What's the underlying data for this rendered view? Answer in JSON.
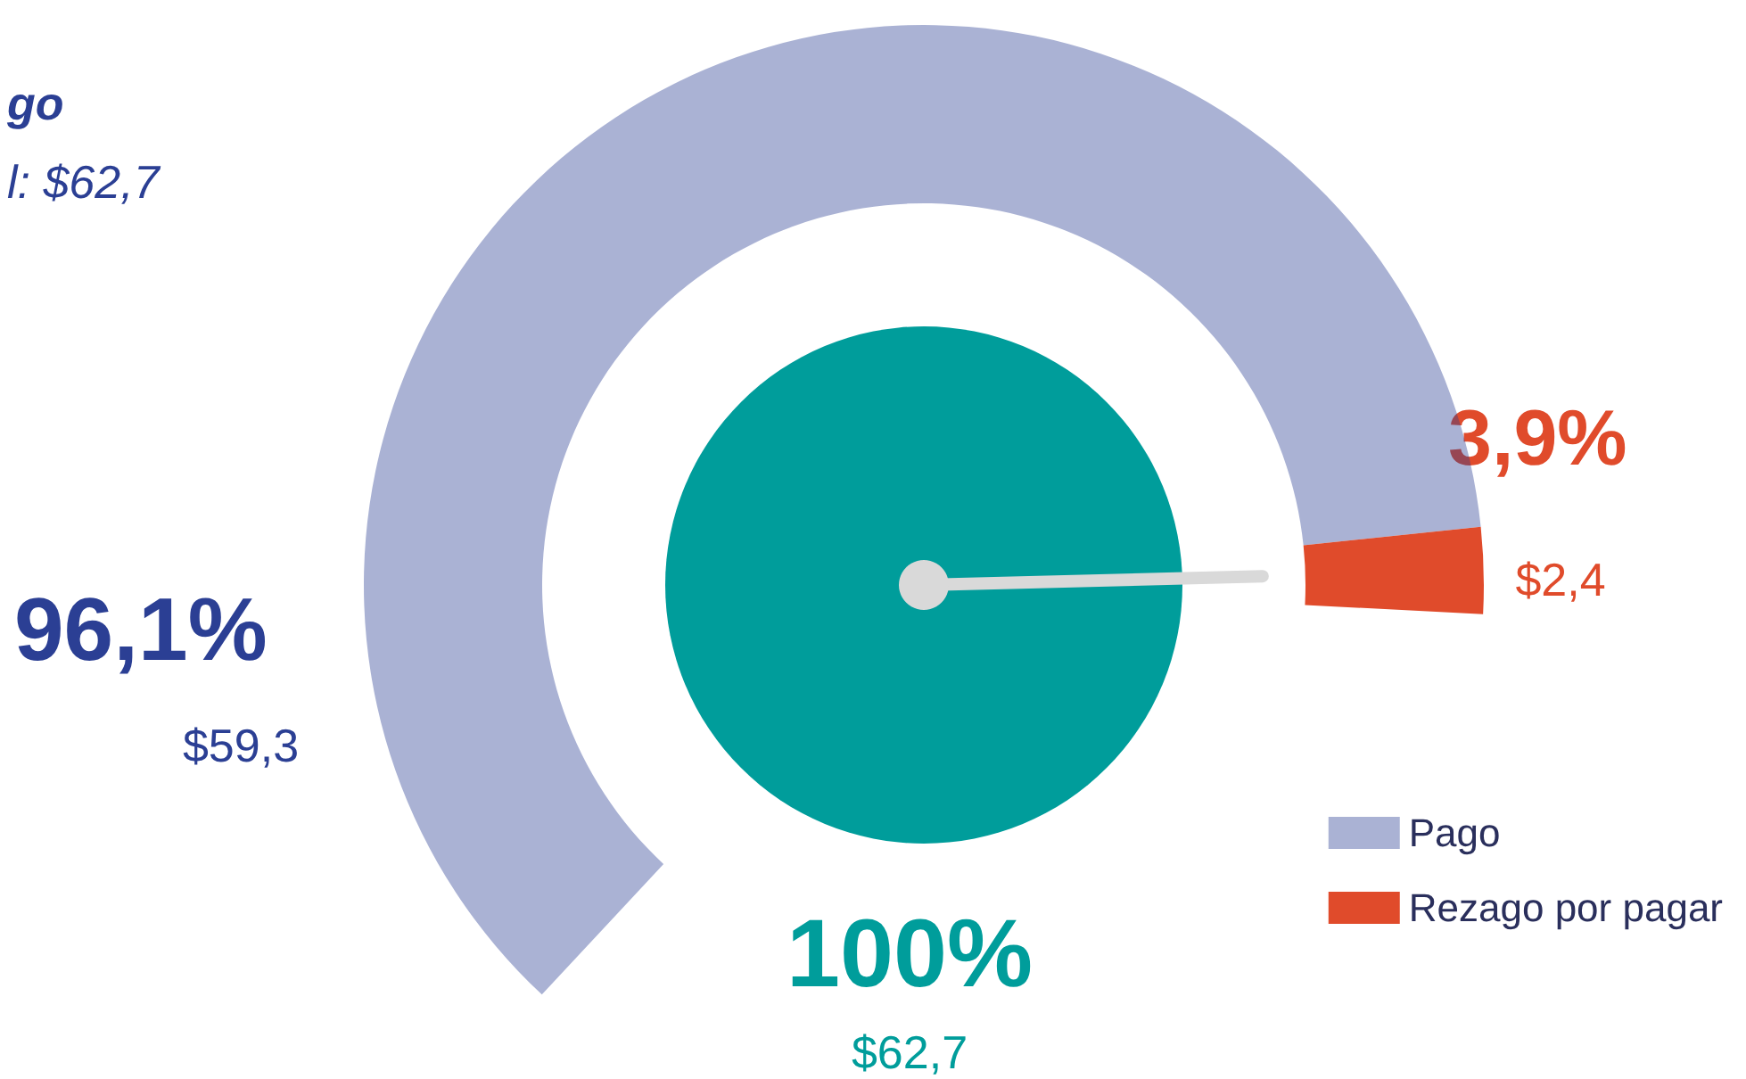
{
  "chart_data": {
    "type": "donut",
    "categories": [
      "Pago",
      "Rezago por pagar"
    ],
    "values": [
      96.1,
      3.9
    ],
    "colors": [
      "#2b3f94",
      "#e04b2b"
    ],
    "value_labels": [
      "96,1%",
      "3,9%"
    ],
    "needle": "Rezago por pagar",
    "legend": "bottom right",
    "annotations": [
      "$59,3",
      "$2,4",
      "100%",
      "$62,7",
      "go",
      "l: $62,7"
    ]
  }
}
